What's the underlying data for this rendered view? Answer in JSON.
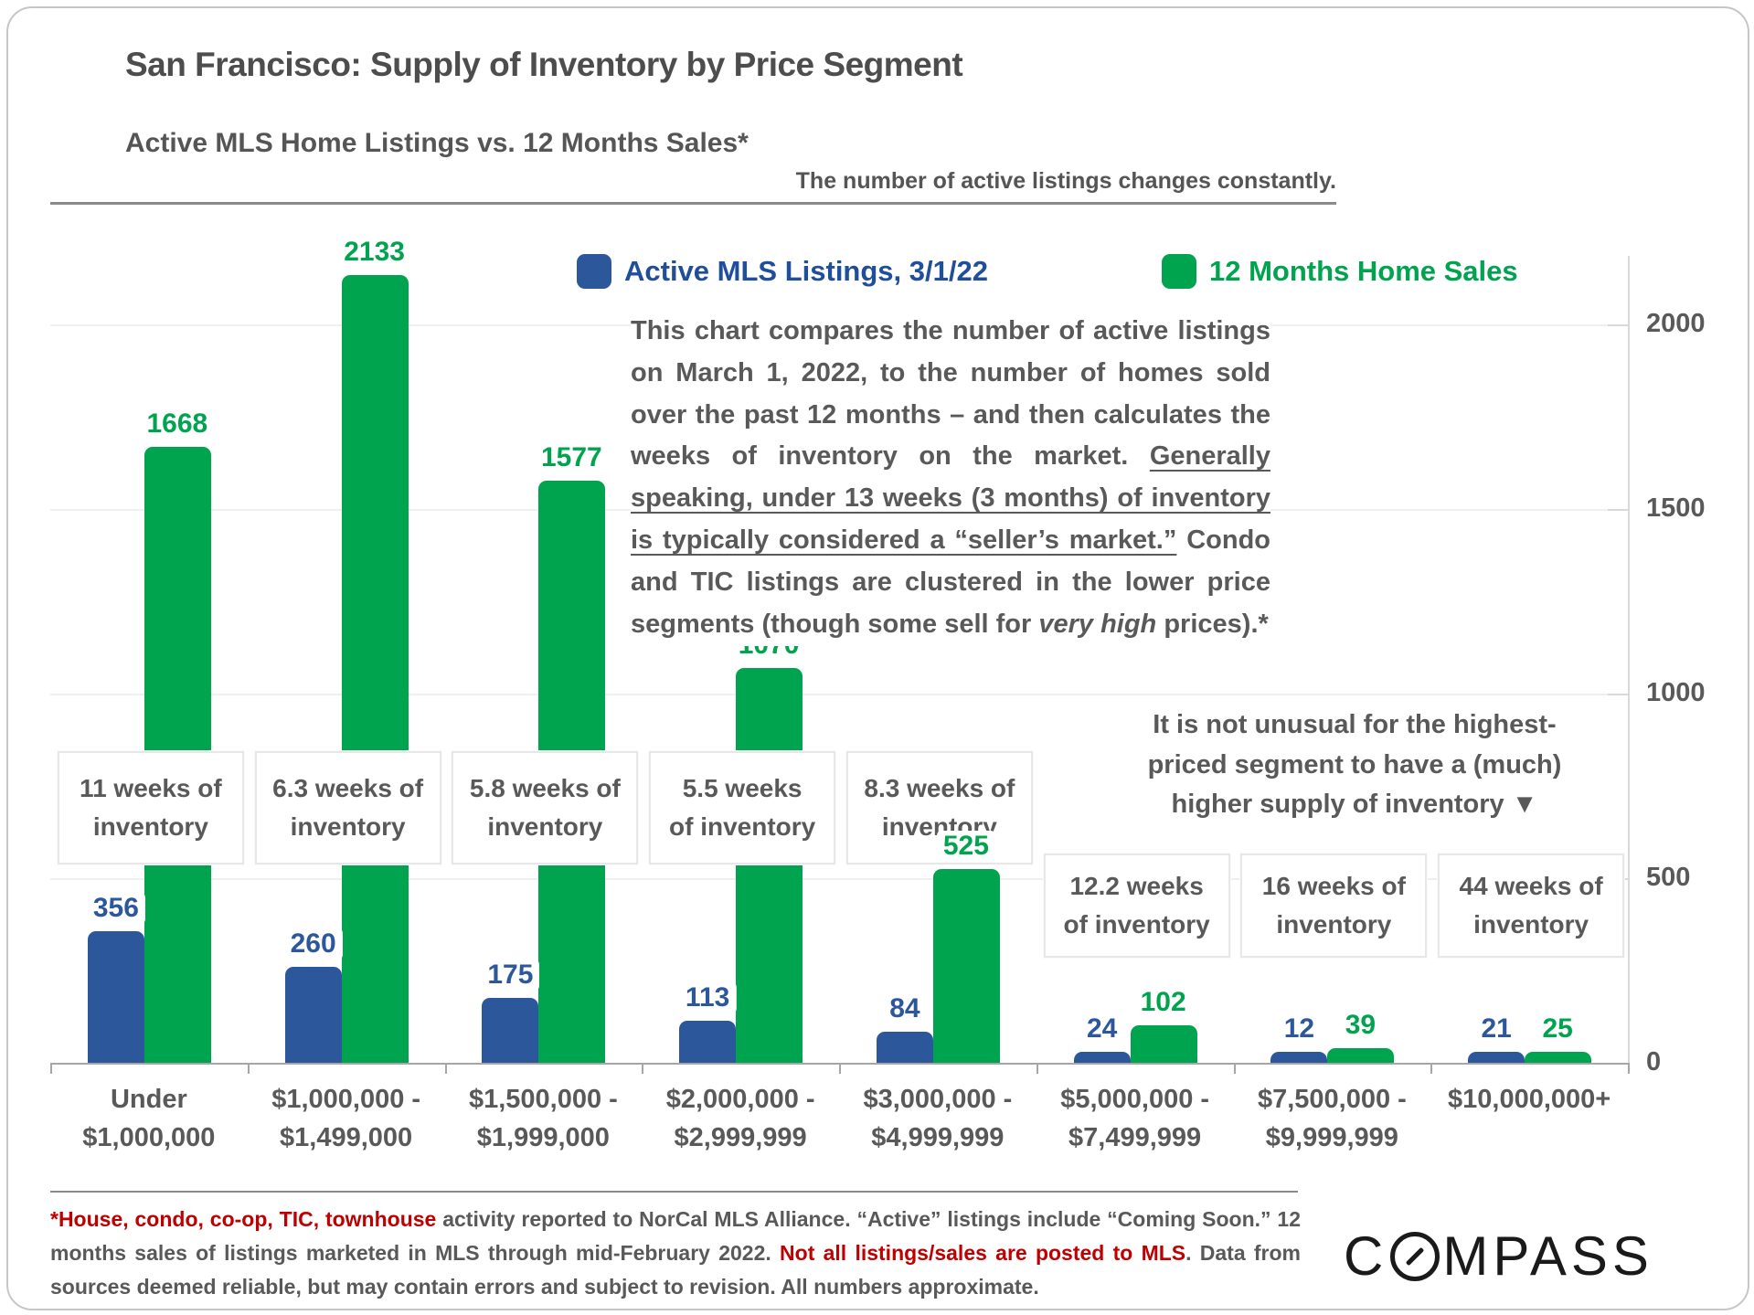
{
  "header": {
    "title": "San Francisco: Supply of Inventory by Price Segment",
    "subtitle": "Active MLS Home Listings vs. 12 Months Sales*",
    "note": "The number of active listings changes constantly."
  },
  "legend": {
    "listings_label": "Active MLS Listings, 3/1/22",
    "sales_label": "12 Months Home Sales"
  },
  "description": {
    "part1": "This chart compares the number of active listings on March 1, 2022, to the number of homes sold over the past 12 months – and then calculates the weeks of inventory on the market. ",
    "part2_underlined": "Generally speaking, under 13 weeks (3 months) of inventory is typically considered a “seller’s market.”",
    "part3": " Condo and TIC listings are clustered in the lower price segments (though some sell for ",
    "part4_italic": "very high",
    "part5": " prices).*"
  },
  "annotation": "It is not unusual for the highest-\npriced segment to have a (much)\nhigher supply of inventory ▼",
  "chart_data": {
    "type": "bar",
    "categories": [
      "Under\n$1,000,000",
      "$1,000,000 -\n$1,499,000",
      "$1,500,000 -\n$1,999,000",
      "$2,000,000 -\n$2,999,999",
      "$3,000,000 -\n$4,999,999",
      "$5,000,000 -\n$7,499,999",
      "$7,500,000 -\n$9,999,999",
      "$10,000,000+"
    ],
    "series": [
      {
        "name": "Active MLS Listings, 3/1/22",
        "color": "#2c589b",
        "values": [
          356,
          260,
          175,
          113,
          84,
          24,
          12,
          21
        ]
      },
      {
        "name": "12 Months Home Sales",
        "color": "#00a44f",
        "values": [
          1668,
          2133,
          1577,
          1070,
          525,
          102,
          39,
          25
        ]
      }
    ],
    "weeks_of_inventory": [
      "11 weeks of\ninventory",
      "6.3 weeks of\ninventory",
      "5.8 weeks of\ninventory",
      "5.5 weeks\nof inventory",
      "8.3 weeks of\ninventory",
      "12.2 weeks\nof inventory",
      "16 weeks of\ninventory",
      "44 weeks of\ninventory"
    ],
    "title": "San Francisco: Supply of Inventory by Price Segment",
    "xlabel": "",
    "ylabel": "",
    "ylim": [
      0,
      2000
    ],
    "yticks": [
      2000,
      1500,
      1000,
      500,
      0
    ],
    "grid": true,
    "legend_position": "top"
  },
  "footnote": {
    "part1_red": "*House, condo, co-op, TIC, townhouse",
    "part2": " activity reported to NorCal MLS Alliance. “Active” listings include “Coming Soon.” 12 months sales of listings marketed in MLS through mid-February 2022. ",
    "part3_red": "Not all listings/sales are posted to MLS",
    "part4": ". Data from sources deemed reliable, but may contain errors and subject to revision.  All numbers approximate."
  },
  "logo": {
    "text_c": "C",
    "text_rest": "MPASS"
  }
}
